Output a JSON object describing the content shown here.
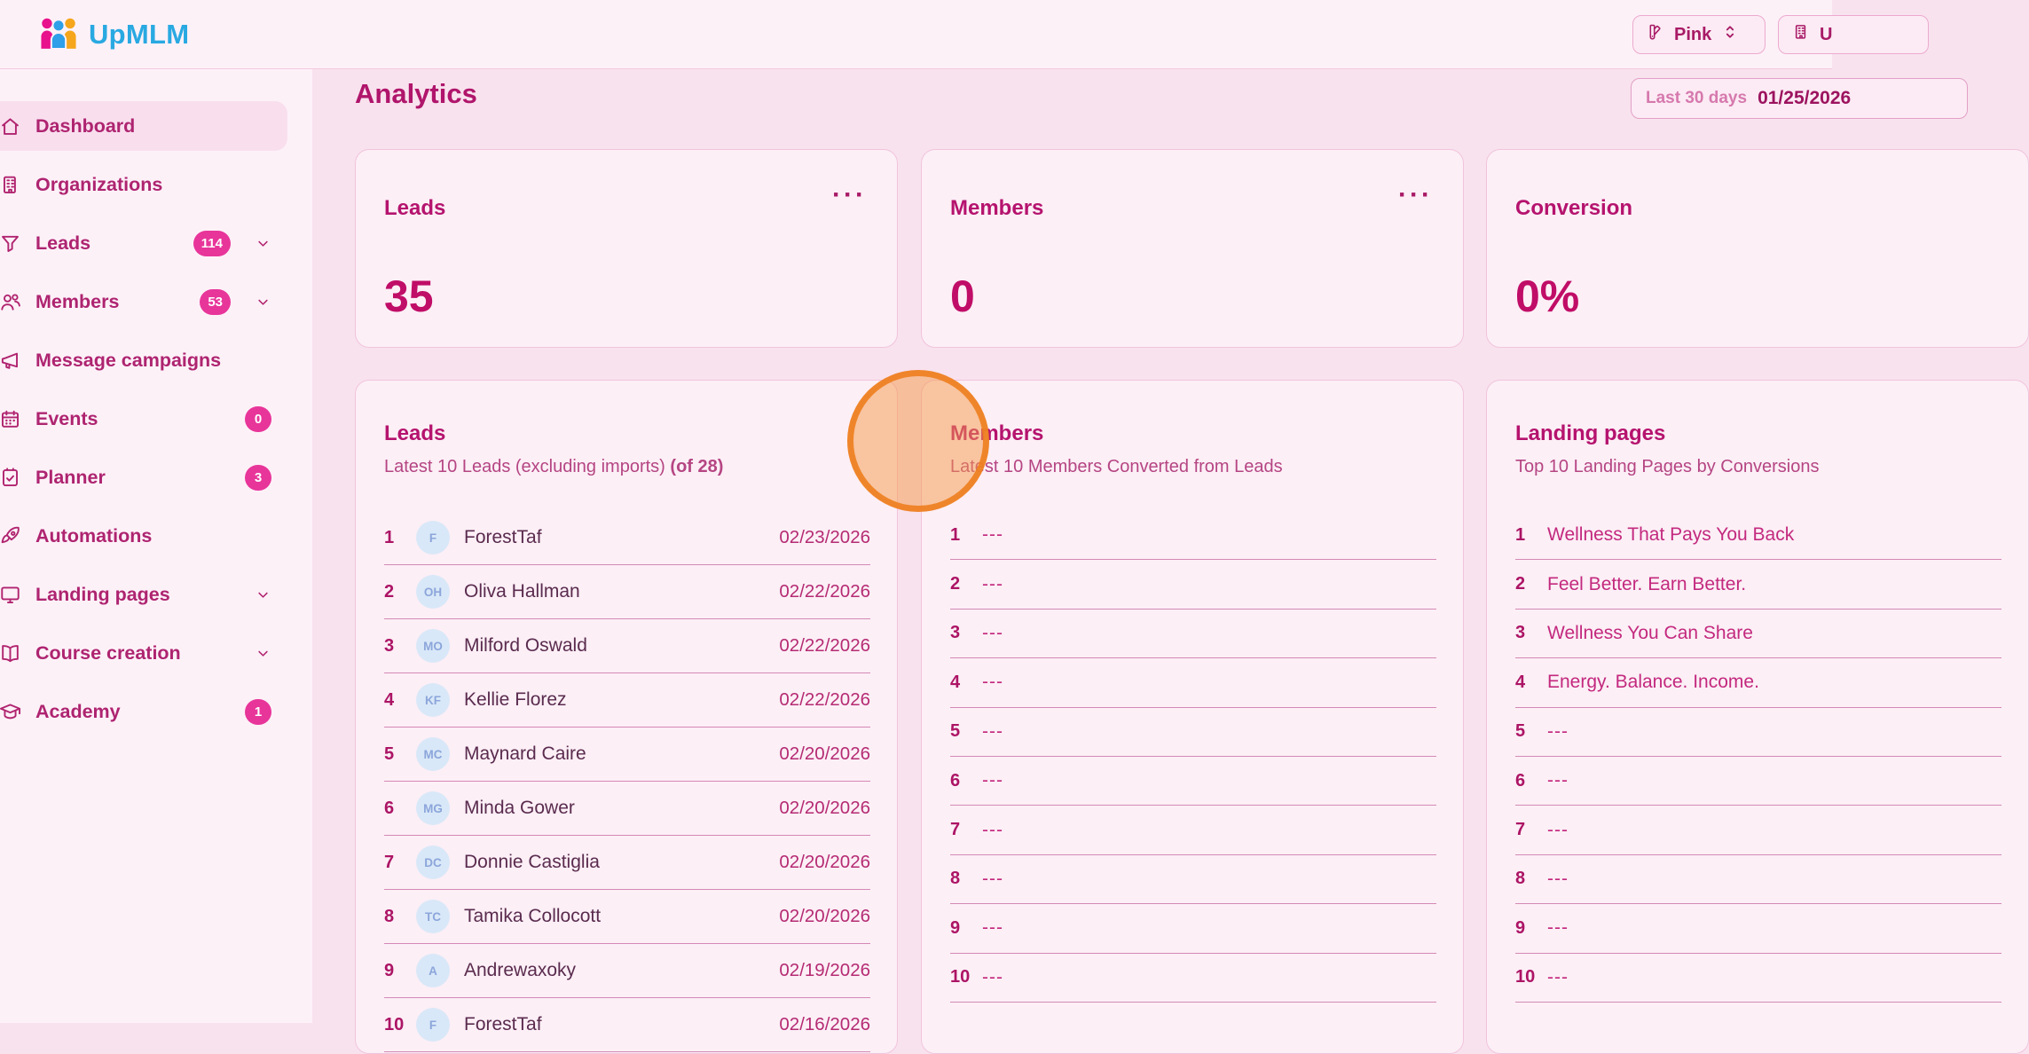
{
  "colors": {
    "accent_dark": "#B0156B",
    "accent_value": "#C00D67",
    "badge_pink": "#E8359A",
    "logo_blue": "#29A9E1",
    "card_bg": "#FCEFF6",
    "page_bg": "#F8E2EE",
    "sidebar_bg": "#FDF1F8",
    "avatar_bg": "#D9E8F8",
    "highlight_circle_orange": "#EE7F1F"
  },
  "brand": {
    "name": "UpMLM"
  },
  "header": {
    "theme_button_label": "Pink",
    "org_button_label": "U"
  },
  "sidebar": {
    "items": [
      {
        "label": "Dashboard",
        "icon": "home",
        "active": true
      },
      {
        "label": "Organizations",
        "icon": "building"
      },
      {
        "label": "Leads",
        "icon": "funnel",
        "badge": "114",
        "chevron": true
      },
      {
        "label": "Members",
        "icon": "users",
        "badge": "53",
        "chevron": true
      },
      {
        "label": "Message campaigns",
        "icon": "megaphone"
      },
      {
        "label": "Events",
        "icon": "calendar",
        "badge": "0"
      },
      {
        "label": "Planner",
        "icon": "planner",
        "badge": "3"
      },
      {
        "label": "Automations",
        "icon": "rocket"
      },
      {
        "label": "Landing pages",
        "icon": "monitor",
        "chevron": true
      },
      {
        "label": "Course creation",
        "icon": "book",
        "chevron": true
      },
      {
        "label": "Academy",
        "icon": "graduation-cap",
        "badge": "1"
      }
    ]
  },
  "page": {
    "title": "Analytics",
    "date_range_label": "Last 30 days",
    "date_value": "01/25/2026"
  },
  "stats": [
    {
      "title": "Leads",
      "value": "35",
      "menu": "···",
      "has_menu": true
    },
    {
      "title": "Members",
      "value": "0",
      "menu": "···",
      "has_menu": true
    },
    {
      "title": "Conversion",
      "value": "0%",
      "menu": "···",
      "has_menu": false
    }
  ],
  "lists": {
    "leads": {
      "title": "Leads",
      "subtitle": "Latest 10 Leads (excluding imports)",
      "subtitle_bold": "(of 28)",
      "rows": [
        {
          "n": "1",
          "initials": "F",
          "name": "ForestTaf",
          "date": "02/23/2026"
        },
        {
          "n": "2",
          "initials": "OH",
          "name": "Oliva Hallman",
          "date": "02/22/2026"
        },
        {
          "n": "3",
          "initials": "MO",
          "name": "Milford Oswald",
          "date": "02/22/2026"
        },
        {
          "n": "4",
          "initials": "KF",
          "name": "Kellie Florez",
          "date": "02/22/2026"
        },
        {
          "n": "5",
          "initials": "MC",
          "name": "Maynard Caire",
          "date": "02/20/2026"
        },
        {
          "n": "6",
          "initials": "MG",
          "name": "Minda Gower",
          "date": "02/20/2026"
        },
        {
          "n": "7",
          "initials": "DC",
          "name": "Donnie Castiglia",
          "date": "02/20/2026"
        },
        {
          "n": "8",
          "initials": "TC",
          "name": "Tamika Collocott",
          "date": "02/20/2026"
        },
        {
          "n": "9",
          "initials": "A",
          "name": "Andrewaxoky",
          "date": "02/19/2026"
        },
        {
          "n": "10",
          "initials": "F",
          "name": "ForestTaf",
          "date": "02/16/2026"
        }
      ]
    },
    "members": {
      "title": "Members",
      "subtitle": "Latest 10 Members Converted from Leads",
      "rows": [
        {
          "n": "1",
          "text": "---"
        },
        {
          "n": "2",
          "text": "---"
        },
        {
          "n": "3",
          "text": "---"
        },
        {
          "n": "4",
          "text": "---"
        },
        {
          "n": "5",
          "text": "---"
        },
        {
          "n": "6",
          "text": "---"
        },
        {
          "n": "7",
          "text": "---"
        },
        {
          "n": "8",
          "text": "---"
        },
        {
          "n": "9",
          "text": "---"
        },
        {
          "n": "10",
          "text": "---"
        }
      ]
    },
    "landing": {
      "title": "Landing pages",
      "subtitle": "Top 10 Landing Pages by Conversions",
      "rows": [
        {
          "n": "1",
          "text": "Wellness That Pays You Back"
        },
        {
          "n": "2",
          "text": "Feel Better. Earn Better."
        },
        {
          "n": "3",
          "text": "Wellness You Can Share"
        },
        {
          "n": "4",
          "text": "Energy. Balance. Income."
        },
        {
          "n": "5",
          "text": "---"
        },
        {
          "n": "6",
          "text": "---"
        },
        {
          "n": "7",
          "text": "---"
        },
        {
          "n": "8",
          "text": "---"
        },
        {
          "n": "9",
          "text": "---"
        },
        {
          "n": "10",
          "text": "---"
        }
      ]
    }
  }
}
